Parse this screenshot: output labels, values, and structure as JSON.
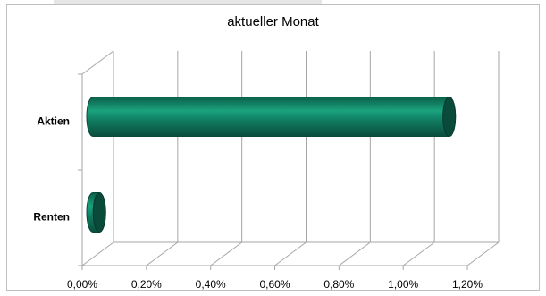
{
  "chart_data": {
    "type": "bar",
    "orientation": "horizontal",
    "title": "aktueller Monat",
    "categories": [
      "Aktien",
      "Renten"
    ],
    "values": [
      0.0111,
      0.0002
    ],
    "xlim": [
      0,
      0.012
    ],
    "x_ticks": [
      0,
      0.002,
      0.004,
      0.006,
      0.008,
      0.01,
      0.012
    ],
    "x_tick_labels": [
      "0,00%",
      "0,20%",
      "0,40%",
      "0,60%",
      "0,80%",
      "1,00%",
      "1,20%"
    ],
    "grid": true,
    "legend": "none",
    "bar_color": "#0f7a5f",
    "bar_dark_color": "#0a4a3a"
  }
}
